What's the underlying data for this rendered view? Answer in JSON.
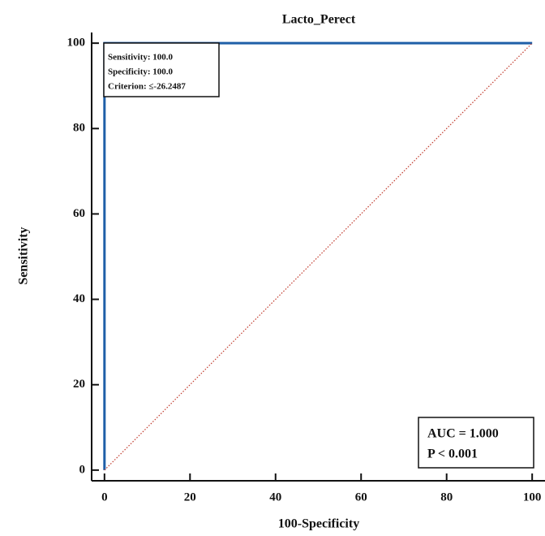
{
  "chart_data": {
    "type": "line",
    "title": "Lacto_Perect",
    "x_label": "100-Specificity",
    "y_label": "Sensitivity",
    "series": [
      {
        "x": [
          0,
          0,
          100
        ],
        "values": [
          0,
          100,
          100
        ],
        "color": "#1f5fa8"
      },
      {
        "x": [
          0,
          100
        ],
        "values": [
          0,
          100
        ],
        "color": "#c0392b",
        "style": "dotted"
      }
    ],
    "xlim": [
      -3,
      103
    ],
    "xticks": [
      0,
      20,
      40,
      60,
      80,
      100
    ],
    "ylim": [
      -2.5,
      102.5
    ],
    "yticks": [
      0,
      20,
      40,
      60,
      80,
      100
    ],
    "criterion_box": [
      "Sensitivity: 100.0",
      "Specificity: 100.0",
      "Criterion: ≤-26.2487"
    ],
    "stats_box": [
      "AUC = 1.000",
      "P < 0.001"
    ]
  }
}
